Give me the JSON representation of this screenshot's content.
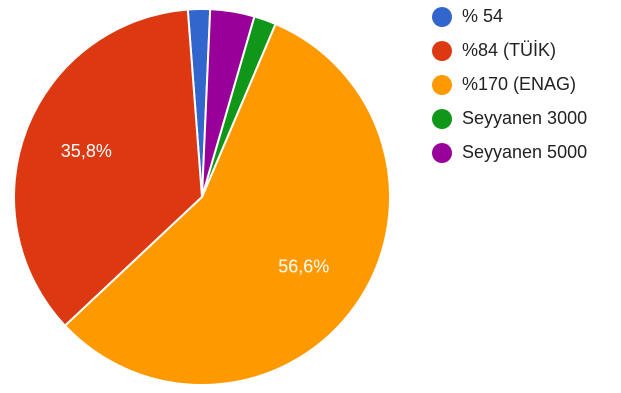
{
  "chart_data": {
    "type": "pie",
    "legend_position": "right",
    "slices": [
      {
        "label": "% 54",
        "value": 1.9,
        "color": "#3366cc",
        "display_label": ""
      },
      {
        "label": "%84 (TÜİK)",
        "value": 35.8,
        "color": "#dc3912",
        "display_label": "35,8%"
      },
      {
        "label": "%170 (ENAG)",
        "value": 56.6,
        "color": "#ff9900",
        "display_label": "56,6%"
      },
      {
        "label": "Seyyanen 3000",
        "value": 1.9,
        "color": "#109618",
        "display_label": ""
      },
      {
        "label": "Seyyanen 5000",
        "value": 3.8,
        "color": "#990099",
        "display_label": ""
      }
    ]
  }
}
